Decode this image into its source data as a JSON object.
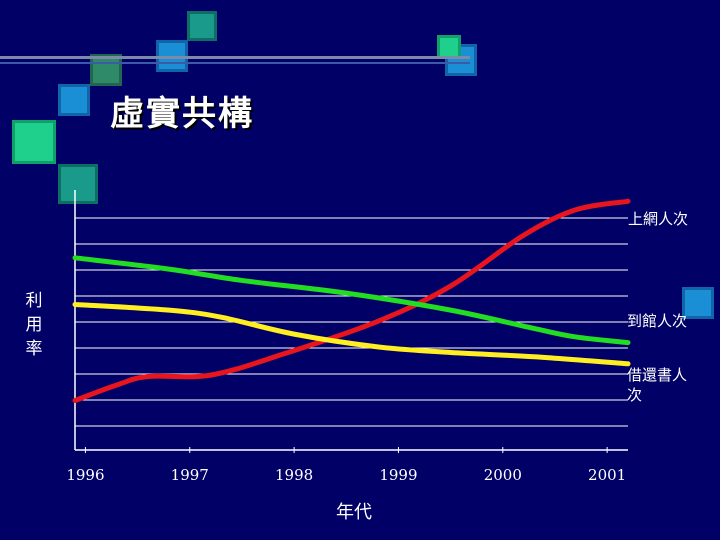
{
  "slide": {
    "title": "虛實共構"
  },
  "chart_data": {
    "type": "line",
    "xlabel": "年代",
    "ylabel": "利用率",
    "categories": [
      "1996",
      "1997",
      "1998",
      "1999",
      "2000",
      "2001"
    ],
    "series": [
      {
        "name": "上網人次",
        "color": "#e8141e",
        "points": [
          [
            1995.9,
            6.9
          ],
          [
            1996.3,
            8.0
          ],
          [
            1996.6,
            8.6
          ],
          [
            1997.2,
            8.7
          ],
          [
            1997.9,
            10.2
          ],
          [
            1998.8,
            12.5
          ],
          [
            1999.5,
            15.0
          ],
          [
            2000.2,
            18.6
          ],
          [
            2000.7,
            20.4
          ],
          [
            2001.2,
            21.0
          ]
        ]
      },
      {
        "name": "到館人次",
        "color": "#22dd22",
        "points": [
          [
            1995.9,
            17.0
          ],
          [
            1996.8,
            16.2
          ],
          [
            1997.5,
            15.4
          ],
          [
            1998.5,
            14.5
          ],
          [
            1999.5,
            13.3
          ],
          [
            2000.3,
            12.0
          ],
          [
            2000.7,
            11.4
          ],
          [
            2001.2,
            11.0
          ]
        ]
      },
      {
        "name": "借還書人次",
        "color": "#ffee22",
        "points": [
          [
            1995.9,
            13.7
          ],
          [
            1996.8,
            13.3
          ],
          [
            1997.3,
            12.8
          ],
          [
            1998.0,
            11.6
          ],
          [
            1998.8,
            10.7
          ],
          [
            1999.5,
            10.3
          ],
          [
            2000.3,
            10.0
          ],
          [
            2001.2,
            9.5
          ]
        ]
      }
    ],
    "xlim": [
      1995.9,
      2001.2
    ],
    "ylim": [
      3.4,
      21.8
    ],
    "grid": true,
    "legend": "end-of-line labels, right"
  }
}
